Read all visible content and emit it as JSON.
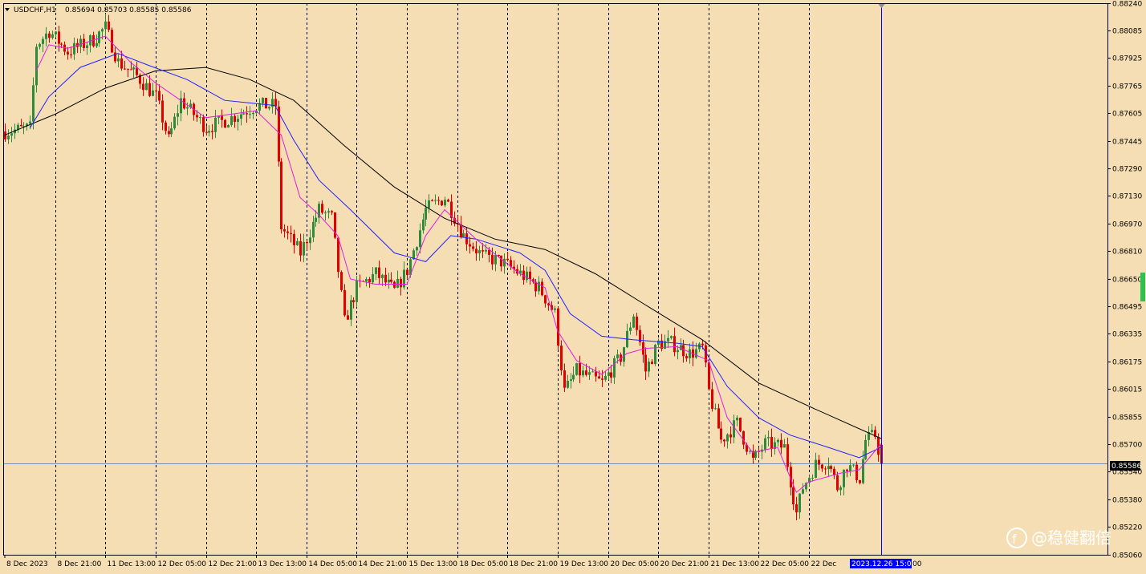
{
  "header": {
    "symbol_label": "USDCHF,H1",
    "ohlc_label": "0.85694 0.85703 0.85585 0.85586",
    "dropdown_icon": "triangle-down-icon"
  },
  "current_price_label": "0.85586",
  "crosshair_time_label": "2023.12.26 15:00",
  "time_label_tail": "00",
  "watermark": {
    "text": "@稳健翻倍",
    "icon": "zhihu-logo-icon"
  },
  "colors": {
    "background": "#f5deb3",
    "bull_candle": "#2e8b3e",
    "bear_candle": "#e00000",
    "ma_fast": "#e020e0",
    "ma_mid": "#2020ff",
    "ma_slow": "#000000",
    "crosshair": "#0000ff",
    "price_line": "#7090b0"
  },
  "chart_data": {
    "type": "candlestick",
    "symbol": "USDCHF",
    "timeframe": "H1",
    "ylim": [
      0.8506,
      0.8824
    ],
    "y_ticks": [
      "0.88240",
      "0.88085",
      "0.87925",
      "0.87765",
      "0.87605",
      "0.87445",
      "0.87290",
      "0.87130",
      "0.86970",
      "0.86810",
      "0.86650",
      "0.86495",
      "0.86335",
      "0.86175",
      "0.86015",
      "0.85855",
      "0.85700",
      "0.85540",
      "0.85380",
      "0.85220",
      "0.85060"
    ],
    "x_ticks": [
      "8 Dec 2023",
      "8 Dec 21:00",
      "11 Dec 13:00",
      "12 Dec 05:00",
      "12 Dec 21:00",
      "13 Dec 13:00",
      "14 Dec 05:00",
      "14 Dec 21:00",
      "15 Dec 13:00",
      "18 Dec 05:00",
      "18 Dec 21:00",
      "19 Dec 13:00",
      "20 Dec 05:00",
      "20 Dec 21:00",
      "21 Dec 13:00",
      "22 Dec 05:00",
      "22 Dec"
    ],
    "period_separators": [
      "8 Dec 21:00",
      "11 Dec 13:00",
      "12 Dec 05:00",
      "12 Dec 21:00",
      "13 Dec 13:00",
      "14 Dec 05:00",
      "14 Dec 21:00",
      "15 Dec 13:00",
      "18 Dec 05:00",
      "18 Dec 21:00",
      "19 Dec 13:00",
      "20 Dec 05:00",
      "20 Dec 21:00",
      "21 Dec 13:00",
      "22 Dec 05:00",
      "22 Dec 21:00"
    ],
    "current_price": 0.85586,
    "last_bar": {
      "open": 0.85694,
      "high": 0.85703,
      "low": 0.85585,
      "close": 0.85586
    },
    "close_path": [
      {
        "bar": 0,
        "close": 0.875
      },
      {
        "bar": 8,
        "close": 0.8752
      },
      {
        "bar": 10,
        "close": 0.88
      },
      {
        "bar": 14,
        "close": 0.8808
      },
      {
        "bar": 20,
        "close": 0.8796
      },
      {
        "bar": 28,
        "close": 0.8803
      },
      {
        "bar": 32,
        "close": 0.881
      },
      {
        "bar": 36,
        "close": 0.879
      },
      {
        "bar": 42,
        "close": 0.8782
      },
      {
        "bar": 48,
        "close": 0.877
      },
      {
        "bar": 52,
        "close": 0.8745
      },
      {
        "bar": 56,
        "close": 0.8768
      },
      {
        "bar": 64,
        "close": 0.8752
      },
      {
        "bar": 72,
        "close": 0.8758
      },
      {
        "bar": 80,
        "close": 0.8765
      },
      {
        "bar": 86,
        "close": 0.8765
      },
      {
        "bar": 88,
        "close": 0.8695
      },
      {
        "bar": 94,
        "close": 0.868
      },
      {
        "bar": 100,
        "close": 0.8705
      },
      {
        "bar": 104,
        "close": 0.87
      },
      {
        "bar": 108,
        "close": 0.864
      },
      {
        "bar": 112,
        "close": 0.866
      },
      {
        "bar": 118,
        "close": 0.8668
      },
      {
        "bar": 124,
        "close": 0.8658
      },
      {
        "bar": 128,
        "close": 0.867
      },
      {
        "bar": 134,
        "close": 0.8705
      },
      {
        "bar": 140,
        "close": 0.8712
      },
      {
        "bar": 146,
        "close": 0.869
      },
      {
        "bar": 152,
        "close": 0.8678
      },
      {
        "bar": 158,
        "close": 0.8675
      },
      {
        "bar": 164,
        "close": 0.8668
      },
      {
        "bar": 170,
        "close": 0.866
      },
      {
        "bar": 175,
        "close": 0.8645
      },
      {
        "bar": 178,
        "close": 0.86
      },
      {
        "bar": 182,
        "close": 0.8612
      },
      {
        "bar": 190,
        "close": 0.8605
      },
      {
        "bar": 196,
        "close": 0.862
      },
      {
        "bar": 200,
        "close": 0.8645
      },
      {
        "bar": 204,
        "close": 0.8612
      },
      {
        "bar": 208,
        "close": 0.8628
      },
      {
        "bar": 212,
        "close": 0.8628
      },
      {
        "bar": 218,
        "close": 0.8622
      },
      {
        "bar": 222,
        "close": 0.8625
      },
      {
        "bar": 224,
        "close": 0.86
      },
      {
        "bar": 228,
        "close": 0.8572
      },
      {
        "bar": 233,
        "close": 0.8582
      },
      {
        "bar": 238,
        "close": 0.856
      },
      {
        "bar": 242,
        "close": 0.857
      },
      {
        "bar": 248,
        "close": 0.8568
      },
      {
        "bar": 252,
        "close": 0.853
      },
      {
        "bar": 254,
        "close": 0.8545
      },
      {
        "bar": 258,
        "close": 0.8558
      },
      {
        "bar": 262,
        "close": 0.856
      },
      {
        "bar": 265,
        "close": 0.8545
      },
      {
        "bar": 268,
        "close": 0.8558
      },
      {
        "bar": 272,
        "close": 0.855
      },
      {
        "bar": 274,
        "close": 0.8572
      },
      {
        "bar": 277,
        "close": 0.8575
      },
      {
        "bar": 279,
        "close": 0.85586
      }
    ],
    "ma_fast_path": [
      {
        "bar": 10,
        "value": 0.8785
      },
      {
        "bar": 14,
        "value": 0.88
      },
      {
        "bar": 20,
        "value": 0.8798
      },
      {
        "bar": 32,
        "value": 0.8805
      },
      {
        "bar": 40,
        "value": 0.879
      },
      {
        "bar": 48,
        "value": 0.8778
      },
      {
        "bar": 56,
        "value": 0.8768
      },
      {
        "bar": 64,
        "value": 0.8758
      },
      {
        "bar": 80,
        "value": 0.8762
      },
      {
        "bar": 88,
        "value": 0.8748
      },
      {
        "bar": 94,
        "value": 0.8712
      },
      {
        "bar": 100,
        "value": 0.8702
      },
      {
        "bar": 106,
        "value": 0.869
      },
      {
        "bar": 110,
        "value": 0.8665
      },
      {
        "bar": 118,
        "value": 0.8662
      },
      {
        "bar": 128,
        "value": 0.8662
      },
      {
        "bar": 134,
        "value": 0.869
      },
      {
        "bar": 140,
        "value": 0.8705
      },
      {
        "bar": 150,
        "value": 0.8688
      },
      {
        "bar": 164,
        "value": 0.8668
      },
      {
        "bar": 172,
        "value": 0.866
      },
      {
        "bar": 176,
        "value": 0.8635
      },
      {
        "bar": 182,
        "value": 0.8618
      },
      {
        "bar": 190,
        "value": 0.861
      },
      {
        "bar": 198,
        "value": 0.8622
      },
      {
        "bar": 204,
        "value": 0.8625
      },
      {
        "bar": 214,
        "value": 0.8626
      },
      {
        "bar": 224,
        "value": 0.8618
      },
      {
        "bar": 230,
        "value": 0.8585
      },
      {
        "bar": 238,
        "value": 0.8565
      },
      {
        "bar": 246,
        "value": 0.8568
      },
      {
        "bar": 252,
        "value": 0.8542
      },
      {
        "bar": 256,
        "value": 0.8548
      },
      {
        "bar": 266,
        "value": 0.8553
      },
      {
        "bar": 272,
        "value": 0.8555
      },
      {
        "bar": 279,
        "value": 0.857
      }
    ],
    "ma_mid_path": [
      {
        "bar": 8,
        "value": 0.8752
      },
      {
        "bar": 14,
        "value": 0.877
      },
      {
        "bar": 24,
        "value": 0.8787
      },
      {
        "bar": 36,
        "value": 0.8795
      },
      {
        "bar": 46,
        "value": 0.8788
      },
      {
        "bar": 58,
        "value": 0.878
      },
      {
        "bar": 70,
        "value": 0.8768
      },
      {
        "bar": 86,
        "value": 0.8765
      },
      {
        "bar": 92,
        "value": 0.8745
      },
      {
        "bar": 100,
        "value": 0.8722
      },
      {
        "bar": 110,
        "value": 0.8705
      },
      {
        "bar": 124,
        "value": 0.868
      },
      {
        "bar": 134,
        "value": 0.8675
      },
      {
        "bar": 142,
        "value": 0.869
      },
      {
        "bar": 150,
        "value": 0.8688
      },
      {
        "bar": 164,
        "value": 0.868
      },
      {
        "bar": 172,
        "value": 0.867
      },
      {
        "bar": 180,
        "value": 0.8645
      },
      {
        "bar": 190,
        "value": 0.8632
      },
      {
        "bar": 200,
        "value": 0.863
      },
      {
        "bar": 214,
        "value": 0.8628
      },
      {
        "bar": 222,
        "value": 0.8626
      },
      {
        "bar": 230,
        "value": 0.8603
      },
      {
        "bar": 240,
        "value": 0.8585
      },
      {
        "bar": 250,
        "value": 0.8575
      },
      {
        "bar": 262,
        "value": 0.8568
      },
      {
        "bar": 272,
        "value": 0.8562
      },
      {
        "bar": 279,
        "value": 0.8568
      }
    ],
    "ma_slow_path": [
      {
        "bar": 0,
        "value": 0.8748
      },
      {
        "bar": 16,
        "value": 0.876
      },
      {
        "bar": 32,
        "value": 0.8775
      },
      {
        "bar": 48,
        "value": 0.8785
      },
      {
        "bar": 64,
        "value": 0.8787
      },
      {
        "bar": 78,
        "value": 0.878
      },
      {
        "bar": 92,
        "value": 0.8768
      },
      {
        "bar": 108,
        "value": 0.8742
      },
      {
        "bar": 124,
        "value": 0.8718
      },
      {
        "bar": 140,
        "value": 0.87
      },
      {
        "bar": 156,
        "value": 0.8688
      },
      {
        "bar": 172,
        "value": 0.8682
      },
      {
        "bar": 188,
        "value": 0.8668
      },
      {
        "bar": 204,
        "value": 0.865
      },
      {
        "bar": 222,
        "value": 0.863
      },
      {
        "bar": 240,
        "value": 0.8605
      },
      {
        "bar": 258,
        "value": 0.859
      },
      {
        "bar": 279,
        "value": 0.8573
      }
    ]
  }
}
